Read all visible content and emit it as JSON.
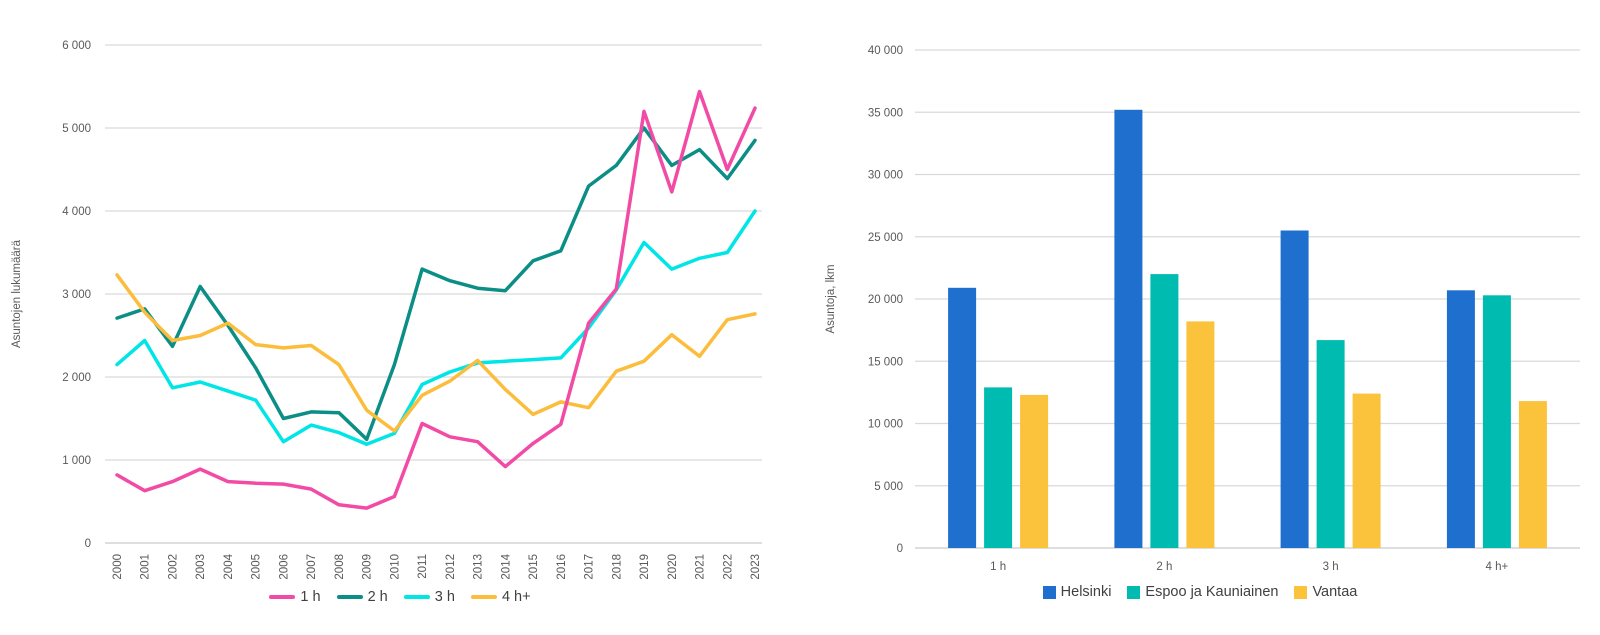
{
  "page": {
    "background": "#ffffff"
  },
  "styles": {
    "tick_text_color": "#595959",
    "grid_color": "#d9d9d9",
    "axis_line_color": "#c9c9c9",
    "legend_text_color": "#404040"
  },
  "chart_data": [
    {
      "type": "line",
      "title": "",
      "ylabel": "Asuntojen lukumäärä",
      "xlabel": "",
      "ylim": [
        0,
        6000
      ],
      "yticks": [
        "0",
        "1 000",
        "2 000",
        "3 000",
        "4 000",
        "5 000",
        "6 000"
      ],
      "grid": true,
      "legend_position": "bottom",
      "x": [
        "2000",
        "2001",
        "2002",
        "2003",
        "2004",
        "2005",
        "2006",
        "2007",
        "2008",
        "2009",
        "2010",
        "2011",
        "2012",
        "2013",
        "2014",
        "2015",
        "2016",
        "2017",
        "2018",
        "2019",
        "2020",
        "2021",
        "2022",
        "2023"
      ],
      "series": [
        {
          "name": "1 h",
          "color": "#f24ba6",
          "values": [
            820,
            630,
            740,
            890,
            740,
            720,
            710,
            650,
            460,
            420,
            560,
            1440,
            1280,
            1220,
            920,
            1200,
            1430,
            2650,
            3060,
            5200,
            4230,
            5440,
            4500,
            5240
          ]
        },
        {
          "name": "2 h",
          "color": "#0b8e85",
          "values": [
            2710,
            2820,
            2370,
            3090,
            2620,
            2110,
            1500,
            1580,
            1570,
            1250,
            2150,
            3300,
            3160,
            3070,
            3040,
            3400,
            3520,
            4300,
            4550,
            5000,
            4550,
            4740,
            4390,
            4850
          ]
        },
        {
          "name": "3 h",
          "color": "#00e5e5",
          "values": [
            2150,
            2440,
            1870,
            1940,
            1830,
            1720,
            1220,
            1420,
            1330,
            1190,
            1320,
            1910,
            2060,
            2170,
            2190,
            2210,
            2230,
            2590,
            3050,
            3620,
            3300,
            3430,
            3500,
            4000
          ]
        },
        {
          "name": "4 h+",
          "color": "#fbbd3b",
          "values": [
            3230,
            2780,
            2440,
            2500,
            2650,
            2390,
            2350,
            2380,
            2150,
            1600,
            1350,
            1780,
            1950,
            2200,
            1850,
            1550,
            1700,
            1630,
            2070,
            2190,
            2510,
            2250,
            2690,
            2760
          ]
        }
      ]
    },
    {
      "type": "bar",
      "title": "",
      "ylabel": "Asuntoja, lkm",
      "xlabel": "",
      "ylim": [
        0,
        40000
      ],
      "yticks": [
        "0",
        "5 000",
        "10 000",
        "15 000",
        "20 000",
        "25 000",
        "30 000",
        "35 000",
        "40 000"
      ],
      "grid": true,
      "legend_position": "bottom",
      "categories": [
        "1 h",
        "2 h",
        "3 h",
        "4 h+"
      ],
      "series": [
        {
          "name": "Helsinki",
          "color": "#1e6fce",
          "values": [
            20900,
            35200,
            25500,
            20700
          ]
        },
        {
          "name": "Espoo ja Kauniainen",
          "color": "#00bcb0",
          "values": [
            12900,
            22000,
            16700,
            20300
          ]
        },
        {
          "name": "Vantaa",
          "color": "#fbc33c",
          "values": [
            12300,
            18200,
            12400,
            11800
          ]
        }
      ]
    }
  ]
}
